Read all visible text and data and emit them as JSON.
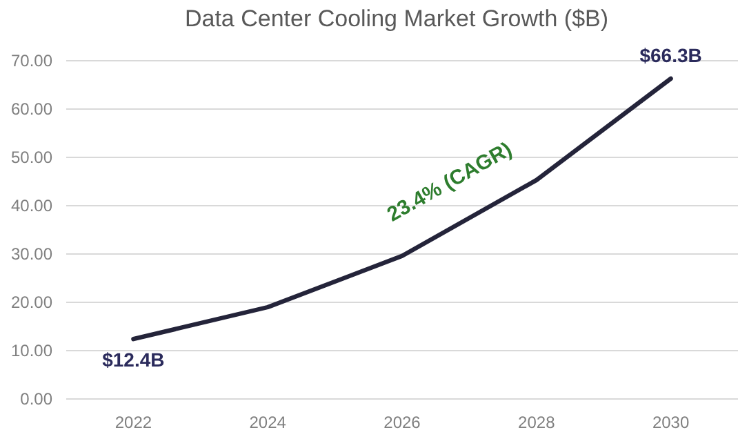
{
  "chart_data": {
    "type": "line",
    "title": "Data Center Cooling Market Growth ($B)",
    "categories": [
      "2022",
      "2024",
      "2026",
      "2028",
      "2030"
    ],
    "series": [
      {
        "color": "#24243a",
        "values": [
          12.4,
          19,
          29.6,
          45.3,
          66.3
        ]
      }
    ],
    "ylim": [
      0,
      70
    ],
    "yticks": [
      {
        "value": 0,
        "label": "0.00"
      },
      {
        "value": 10,
        "label": "10.00"
      },
      {
        "value": 20,
        "label": "20.00"
      },
      {
        "value": 30,
        "label": "30.00"
      },
      {
        "value": 40,
        "label": "40.00"
      },
      {
        "value": 50,
        "label": "50.00"
      },
      {
        "value": 60,
        "label": "60.00"
      },
      {
        "value": 70,
        "label": "70.00"
      }
    ],
    "grid": "y",
    "marker": "none",
    "line_style": "solid",
    "annotations": [
      {
        "text": "$12.4B",
        "x": "2022",
        "y": 12.4
      },
      {
        "text": "$66.3B",
        "x": "2030",
        "y": 66.3
      },
      "23.4% (CAGR)"
    ]
  }
}
